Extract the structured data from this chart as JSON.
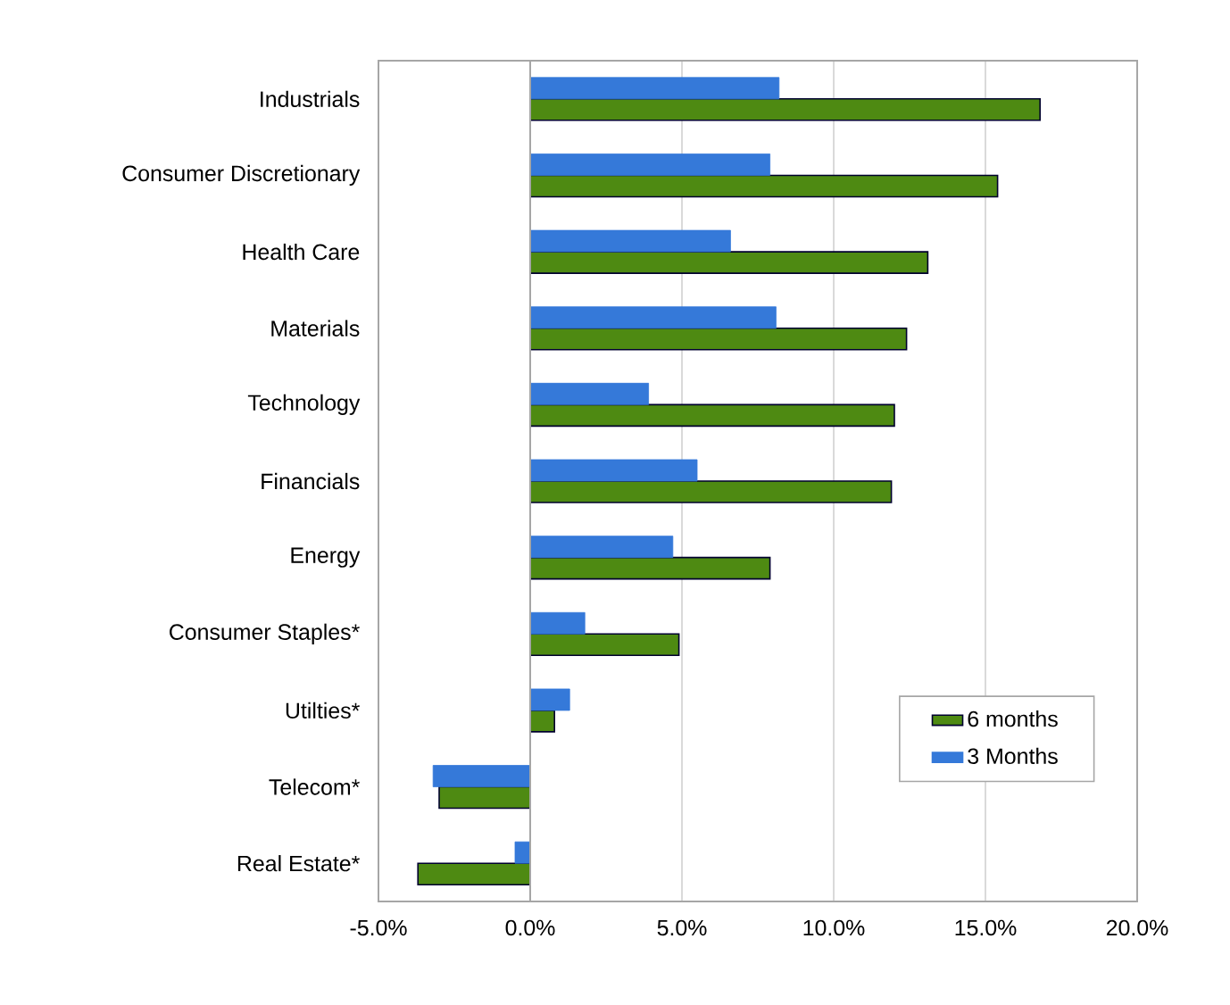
{
  "chart_data": {
    "type": "bar",
    "orientation": "horizontal",
    "categories": [
      "Industrials",
      "Consumer Discretionary",
      "Health Care",
      "Materials",
      "Technology",
      "Financials",
      "Energy",
      "Consumer Staples*",
      "Utilties*",
      "Telecom*",
      "Real Estate*"
    ],
    "series": [
      {
        "name": "6 months",
        "color": "#4e8a12",
        "values": [
          16.8,
          15.4,
          13.1,
          12.4,
          12.0,
          11.9,
          7.9,
          4.9,
          0.8,
          -3.0,
          -3.7
        ]
      },
      {
        "name": "3 Months",
        "color": "#3579d9",
        "values": [
          8.2,
          7.9,
          6.6,
          8.1,
          3.9,
          5.5,
          4.7,
          1.8,
          1.3,
          -3.2,
          -0.5
        ]
      }
    ],
    "xlim": [
      -5,
      20
    ],
    "xticks": [
      {
        "value": -5,
        "label": "-5.0%"
      },
      {
        "value": 0,
        "label": "0.0%"
      },
      {
        "value": 5,
        "label": "5.0%"
      },
      {
        "value": 10,
        "label": "10.0%"
      },
      {
        "value": 15,
        "label": "15.0%"
      },
      {
        "value": 20,
        "label": "20.0%"
      }
    ],
    "grid": "x",
    "legend": "bottom right"
  }
}
